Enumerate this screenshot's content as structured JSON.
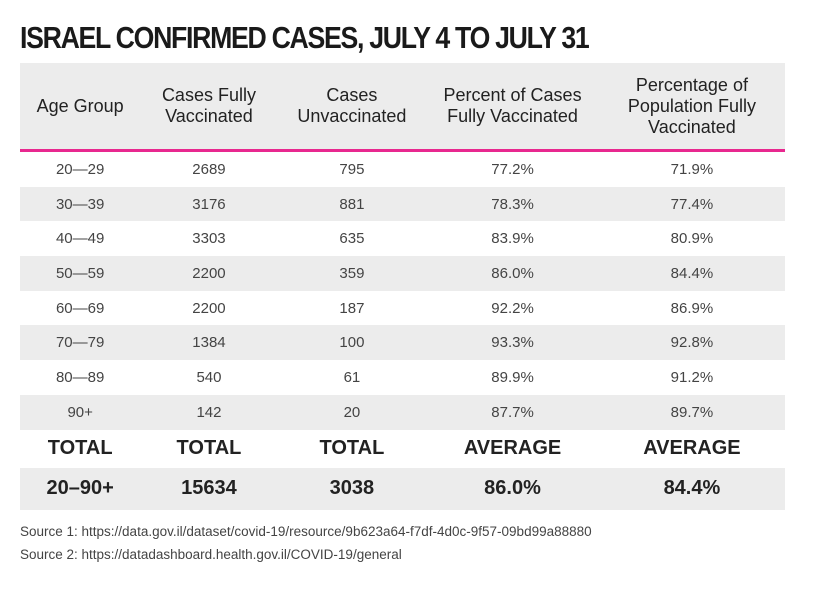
{
  "chart_data": {
    "type": "table",
    "title": "ISRAEL CONFIRMED CASES, JULY 4 TO JULY 31",
    "columns": [
      "Age Group",
      "Cases Fully Vaccinated",
      "Cases Unvaccinated",
      "Percent of Cases Fully Vaccinated",
      "Percentage of Population Fully Vaccinated"
    ],
    "rows": [
      [
        "20—29",
        "2689",
        "795",
        "77.2%",
        "71.9%"
      ],
      [
        "30—39",
        "3176",
        "881",
        "78.3%",
        "77.4%"
      ],
      [
        "40—49",
        "3303",
        "635",
        "83.9%",
        "80.9%"
      ],
      [
        "50—59",
        "2200",
        "359",
        "86.0%",
        "84.4%"
      ],
      [
        "60—69",
        "2200",
        "187",
        "92.2%",
        "86.9%"
      ],
      [
        "70—79",
        "1384",
        "100",
        "93.3%",
        "92.8%"
      ],
      [
        "80—89",
        "540",
        "61",
        "89.9%",
        "91.2%"
      ],
      [
        "90+",
        "142",
        "20",
        "87.7%",
        "89.7%"
      ]
    ],
    "summary_labels": [
      "TOTAL",
      "TOTAL",
      "TOTAL",
      "AVERAGE",
      "AVERAGE"
    ],
    "summary_values": [
      "20–90+",
      "15634",
      "3038",
      "86.0%",
      "84.4%"
    ],
    "accent_color": "#e8288f"
  },
  "sources": [
    "Source 1: https://data.gov.il/dataset/covid-19/resource/9b623a64-f7df-4d0c-9f57-09bd99a88880",
    "Source 2: https://datadashboard.health.gov.il/COVID-19/general"
  ]
}
